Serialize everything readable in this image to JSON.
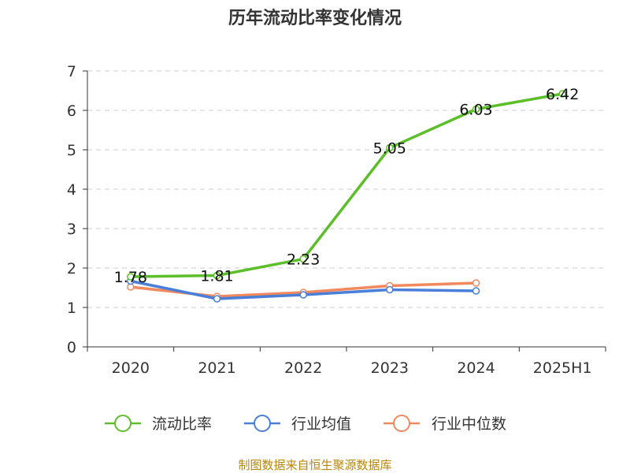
{
  "chart_data": {
    "type": "line",
    "title": "历年流动比率变化情况",
    "categories": [
      "2020",
      "2021",
      "2022",
      "2023",
      "2024",
      "2025H1"
    ],
    "ylim": [
      0,
      7
    ],
    "yticks": [
      "0",
      "1",
      "2",
      "3",
      "4",
      "5",
      "6",
      "7"
    ],
    "grid": true,
    "legend_position": "bottom",
    "series": [
      {
        "name": "流动比率",
        "color": "#5cbf2a",
        "values": [
          1.78,
          1.81,
          2.23,
          5.05,
          6.03,
          6.42
        ],
        "labels": [
          "1.78",
          "1.81",
          "2.23",
          "5.05",
          "6.03",
          "6.42"
        ]
      },
      {
        "name": "行业均值",
        "color": "#4a7fd9",
        "values": [
          1.67,
          1.22,
          1.32,
          1.45,
          1.42,
          null
        ]
      },
      {
        "name": "行业中位数",
        "color": "#f2895e",
        "values": [
          1.52,
          1.28,
          1.38,
          1.55,
          1.62,
          null
        ]
      }
    ]
  },
  "source_text": "制图数据来自恒生聚源数据库"
}
